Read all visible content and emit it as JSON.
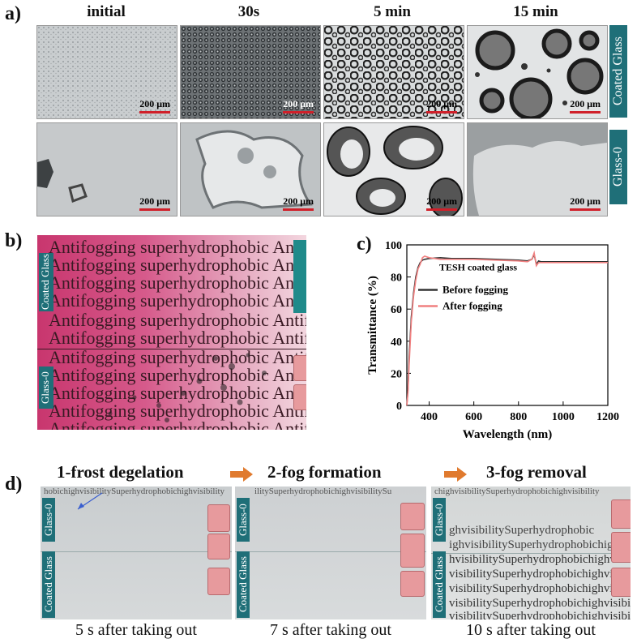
{
  "panel_a": {
    "letter": "a)",
    "columns": [
      "initial",
      "30s",
      "5 min",
      "15 min"
    ],
    "rows": [
      "Coated Glass",
      "Glass-0"
    ],
    "scale_bar": "200 μm"
  },
  "panel_b": {
    "letter": "b)",
    "labels": [
      "Coated Glass",
      "Glass-0"
    ],
    "text_lines": [
      "Antifogging superhydrophobic Antifo",
      "Antifogging superhydrophobic Antifo",
      "Antifogging superhydrophobic Antifo",
      "Antifogging superhydrophobic Antifo",
      "Antifogging superhydrophobic Antifog",
      "Antifogging superhydrophobic Antifogg",
      "Antifogging superhydrophobic Antif",
      "Antifogging superhydrophobic Antifo",
      "Antifogging superhydrophobic Antifo",
      "Antifogging superhydrophobic Antifo",
      "Antifogging superhydrophobic Antifo"
    ]
  },
  "panel_d": {
    "letter": "d)",
    "steps": [
      {
        "title": "1-frost degelation",
        "caption": "5 s after taking out",
        "top_text": "hobichighvisibilitySuperhydrophobichighvisibility"
      },
      {
        "title": "2-fog formation",
        "caption": "7 s after taking out",
        "top_text": "ilitySuperhydrophobichighvisibilitySu"
      },
      {
        "title": "3-fog removal",
        "caption": "10 s after taking out",
        "top_text": "chighvisibilitySuperhydrophobichighvisibility"
      }
    ],
    "labels": [
      "Glass-0",
      "Coated Glass"
    ],
    "photo3_lines": [
      "ghvisibilitySuperhydrophobic",
      "ighvisibilitySuperhydrophobichig",
      "hvisibilitySuperhydrophobichighvi",
      "visibilitySuperhydrophobichighvisib",
      "visibilitySuperhydrophobichighvisibility",
      "visibilitySuperhydrophobichighvisibility",
      "visibilitySuperhydrophobichighvisibility"
    ],
    "arrow_color": "#e07a2e",
    "tag_color": "#1f6f78"
  },
  "chart_data": {
    "panel_letter": "c)",
    "type": "line",
    "annotation": "TESH coated glass",
    "xlabel": "Wavelength (nm)",
    "ylabel": "Transmittance (%)",
    "xlim": [
      300,
      1200
    ],
    "ylim": [
      0,
      100
    ],
    "xticks": [
      400,
      600,
      800,
      1000,
      1200
    ],
    "yticks": [
      0,
      20,
      40,
      60,
      80,
      100
    ],
    "legend_position": "center-left",
    "series": [
      {
        "name": "Before fogging",
        "color": "#333333",
        "x": [
          300,
          305,
          310,
          320,
          330,
          340,
          350,
          360,
          370,
          380,
          400,
          450,
          500,
          600,
          700,
          800,
          840,
          860,
          870,
          880,
          890,
          900,
          1000,
          1100,
          1200
        ],
        "y": [
          0,
          10,
          30,
          55,
          70,
          80,
          86,
          89,
          90.5,
          91,
          91.5,
          92,
          91.5,
          91.5,
          91,
          90.5,
          90,
          91,
          94,
          88,
          90,
          89.5,
          89.5,
          89.5,
          89.5
        ]
      },
      {
        "name": "After fogging",
        "color": "#f08080",
        "x": [
          300,
          305,
          310,
          320,
          330,
          340,
          350,
          360,
          370,
          380,
          400,
          450,
          500,
          600,
          700,
          800,
          840,
          860,
          870,
          880,
          890,
          900,
          1000,
          1100,
          1200
        ],
        "y": [
          0,
          8,
          25,
          52,
          68,
          78,
          85,
          88,
          92,
          93,
          92,
          91,
          91,
          91,
          90.5,
          90,
          89.5,
          91,
          95,
          87,
          89,
          89,
          89,
          89,
          89
        ]
      }
    ]
  }
}
